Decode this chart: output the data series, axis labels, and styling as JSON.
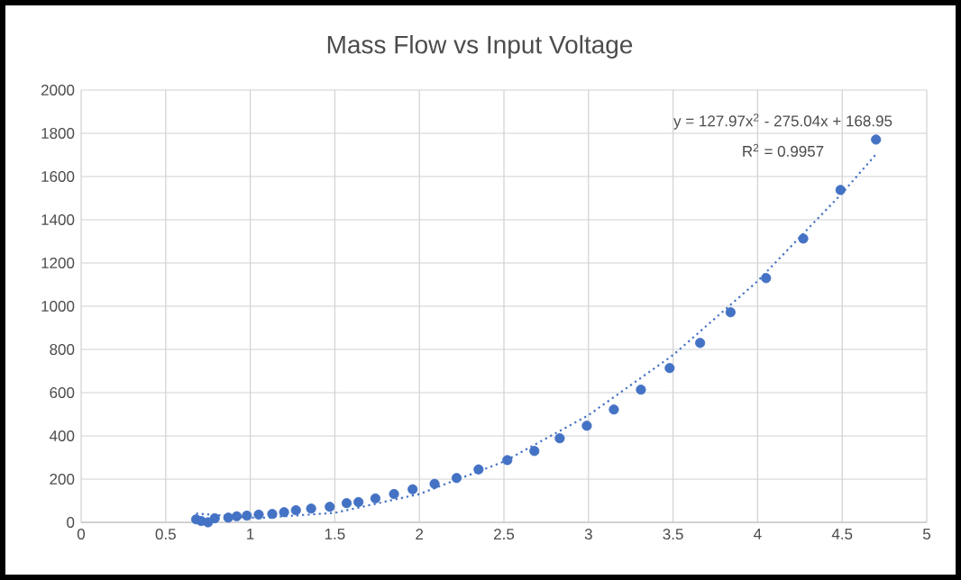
{
  "chart_data": {
    "type": "scatter",
    "title": "Mass Flow vs Input Voltage",
    "xlim": [
      0,
      5
    ],
    "xticks": [
      0,
      0.5,
      1,
      1.5,
      2,
      2.5,
      3,
      3.5,
      4,
      4.5,
      5
    ],
    "ylim": [
      0,
      2000
    ],
    "yticks": [
      0,
      200,
      400,
      600,
      800,
      1000,
      1200,
      1400,
      1600,
      1800,
      2000
    ],
    "grid": true,
    "annotations": [
      "y = 127.97x$^{2}$ - 275.04x + 168.95",
      "R$^{2}$ = 0.9957"
    ],
    "series": [
      {
        "color": "#4472c4",
        "marker": "circle",
        "x": [
          0.68,
          0.71,
          0.75,
          0.79,
          0.87,
          0.92,
          0.98,
          1.05,
          1.13,
          1.2,
          1.27,
          1.36,
          1.47,
          1.57,
          1.64,
          1.74,
          1.85,
          1.96,
          2.09,
          2.22,
          2.35,
          2.52,
          2.68,
          2.83,
          2.99,
          3.15,
          3.31,
          3.48,
          3.66,
          3.84,
          4.05,
          4.27,
          4.49,
          4.7
        ],
        "values": [
          14,
          6,
          0,
          19,
          22,
          28,
          31,
          36,
          39,
          47,
          56,
          64,
          72,
          89,
          94,
          111,
          131,
          153,
          178,
          205,
          245,
          288,
          330,
          389,
          447,
          522,
          614,
          714,
          830,
          972,
          1130,
          1313,
          1538,
          1771
        ]
      },
      {
        "type": "line",
        "color": "#4472c4",
        "line_style": "dotted",
        "marker": "none",
        "x": [
          0.68,
          1,
          1.07,
          1.5,
          2,
          2.5,
          3,
          3.5,
          4,
          4.5,
          4.7
        ],
        "values": [
          41,
          22,
          21,
          44,
          131,
          281,
          496,
          774,
          1116,
          1523,
          1703
        ]
      }
    ]
  }
}
